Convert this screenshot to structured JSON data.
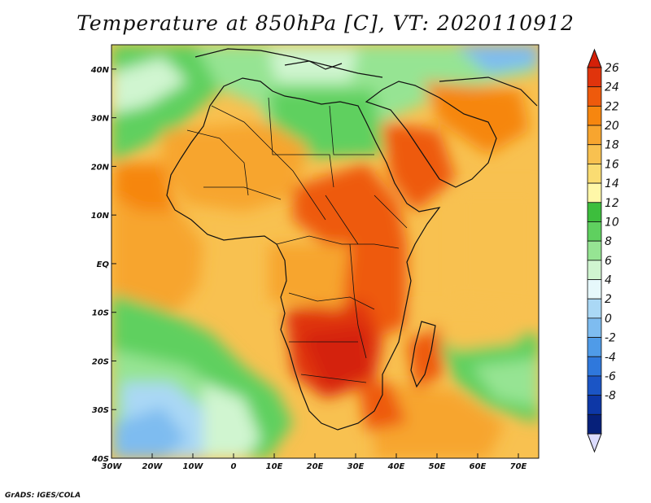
{
  "title": "Temperature at 850hPa [C], VT: 2020110912",
  "credit": "GrADS: IGES/COLA",
  "map": {
    "projection": "latlon",
    "lon_range": [
      -30,
      75
    ],
    "lat_range": [
      -40,
      45
    ],
    "lon_ticks": [
      {
        "value": -30,
        "label": "30W"
      },
      {
        "value": -20,
        "label": "20W"
      },
      {
        "value": -10,
        "label": "10W"
      },
      {
        "value": 0,
        "label": "0"
      },
      {
        "value": 10,
        "label": "10E"
      },
      {
        "value": 20,
        "label": "20E"
      },
      {
        "value": 30,
        "label": "30E"
      },
      {
        "value": 40,
        "label": "40E"
      },
      {
        "value": 50,
        "label": "50E"
      },
      {
        "value": 60,
        "label": "60E"
      },
      {
        "value": 70,
        "label": "70E"
      }
    ],
    "lat_ticks": [
      {
        "value": 40,
        "label": "40N"
      },
      {
        "value": 30,
        "label": "30N"
      },
      {
        "value": 20,
        "label": "20N"
      },
      {
        "value": 10,
        "label": "10N"
      },
      {
        "value": 0,
        "label": "EQ"
      },
      {
        "value": -10,
        "label": "10S"
      },
      {
        "value": -20,
        "label": "20S"
      },
      {
        "value": -30,
        "label": "30S"
      },
      {
        "value": -40,
        "label": "40S"
      }
    ]
  },
  "colorbar": {
    "levels": [
      "26",
      "24",
      "22",
      "20",
      "18",
      "16",
      "14",
      "12",
      "10",
      "8",
      "6",
      "4",
      "2",
      "0",
      "-2",
      "-4",
      "-6",
      "-8"
    ],
    "colors": [
      "#e0340c",
      "#ee5a0c",
      "#f6860f",
      "#f7a52f",
      "#f8c150",
      "#fadc72",
      "#fff7a8",
      "#3dbe3d",
      "#5fd05f",
      "#96e493",
      "#d0f5d0",
      "#e6f8fb",
      "#aad8f5",
      "#7ebcf0",
      "#4f9be8",
      "#2f78dc",
      "#1b55c5",
      "#0d37a6",
      "#06207a"
    ],
    "top_color": "#d42008",
    "bottom_color": "#dcdcff"
  }
}
